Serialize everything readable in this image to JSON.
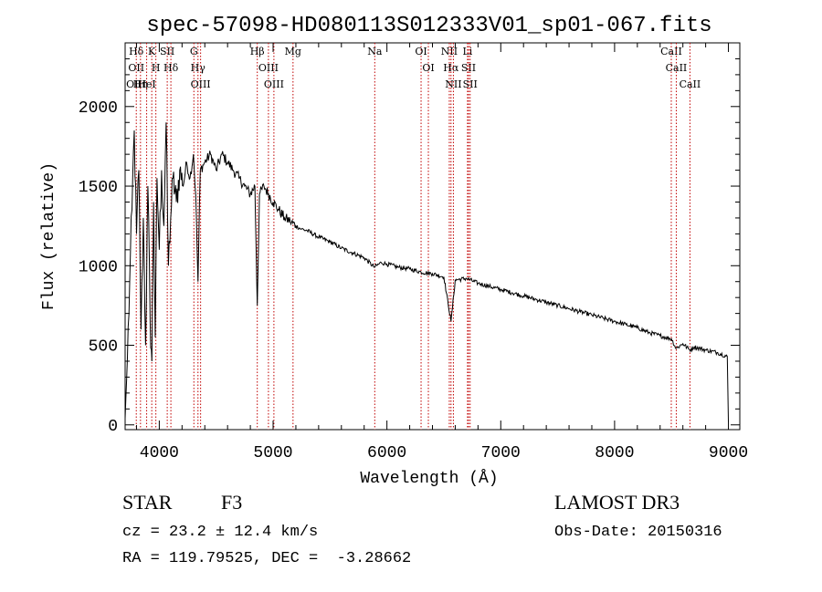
{
  "chart_data": {
    "type": "line",
    "title": "spec-57098-HD080113S012333V01_sp01-067.fits",
    "xlabel": "Wavelength (Å)",
    "ylabel": "Flux (relative)",
    "xlim": [
      3700,
      9100
    ],
    "ylim": [
      -30,
      2400
    ],
    "x_ticks": [
      4000,
      5000,
      6000,
      7000,
      8000,
      9000
    ],
    "y_ticks": [
      0,
      500,
      1000,
      1500,
      2000
    ],
    "grid": false,
    "series": [
      {
        "name": "flux",
        "points": [
          [
            3700,
            40
          ],
          [
            3720,
            420
          ],
          [
            3740,
            900
          ],
          [
            3760,
            1350
          ],
          [
            3780,
            1850
          ],
          [
            3800,
            1200
          ],
          [
            3820,
            1600
          ],
          [
            3840,
            600
          ],
          [
            3860,
            1300
          ],
          [
            3880,
            500
          ],
          [
            3900,
            1500
          ],
          [
            3920,
            650
          ],
          [
            3935,
            400
          ],
          [
            3950,
            1400
          ],
          [
            3965,
            550
          ],
          [
            3980,
            1550
          ],
          [
            4000,
            1100
          ],
          [
            4020,
            1600
          ],
          [
            4040,
            1250
          ],
          [
            4060,
            1900
          ],
          [
            4080,
            1000
          ],
          [
            4100,
            1300
          ],
          [
            4120,
            1550
          ],
          [
            4150,
            1400
          ],
          [
            4180,
            1600
          ],
          [
            4210,
            1500
          ],
          [
            4240,
            1650
          ],
          [
            4270,
            1550
          ],
          [
            4300,
            1700
          ],
          [
            4320,
            1450
          ],
          [
            4340,
            900
          ],
          [
            4360,
            1600
          ],
          [
            4400,
            1650
          ],
          [
            4450,
            1700
          ],
          [
            4500,
            1600
          ],
          [
            4550,
            1700
          ],
          [
            4600,
            1650
          ],
          [
            4650,
            1600
          ],
          [
            4700,
            1550
          ],
          [
            4750,
            1500
          ],
          [
            4800,
            1450
          ],
          [
            4840,
            1500
          ],
          [
            4861,
            750
          ],
          [
            4880,
            1450
          ],
          [
            4920,
            1500
          ],
          [
            4960,
            1450
          ],
          [
            5000,
            1400
          ],
          [
            5050,
            1350
          ],
          [
            5100,
            1300
          ],
          [
            5150,
            1280
          ],
          [
            5200,
            1250
          ],
          [
            5250,
            1230
          ],
          [
            5300,
            1220
          ],
          [
            5400,
            1180
          ],
          [
            5500,
            1150
          ],
          [
            5600,
            1110
          ],
          [
            5700,
            1080
          ],
          [
            5800,
            1050
          ],
          [
            5890,
            990
          ],
          [
            5950,
            1020
          ],
          [
            6000,
            1010
          ],
          [
            6100,
            990
          ],
          [
            6200,
            980
          ],
          [
            6300,
            960
          ],
          [
            6400,
            950
          ],
          [
            6500,
            930
          ],
          [
            6563,
            650
          ],
          [
            6600,
            910
          ],
          [
            6700,
            920
          ],
          [
            6800,
            890
          ],
          [
            6900,
            870
          ],
          [
            7000,
            850
          ],
          [
            7100,
            830
          ],
          [
            7200,
            810
          ],
          [
            7300,
            790
          ],
          [
            7400,
            770
          ],
          [
            7500,
            750
          ],
          [
            7600,
            730
          ],
          [
            7700,
            710
          ],
          [
            7800,
            690
          ],
          [
            7900,
            670
          ],
          [
            8000,
            650
          ],
          [
            8100,
            630
          ],
          [
            8200,
            610
          ],
          [
            8300,
            580
          ],
          [
            8400,
            560
          ],
          [
            8500,
            540
          ],
          [
            8540,
            480
          ],
          [
            8600,
            510
          ],
          [
            8660,
            470
          ],
          [
            8700,
            490
          ],
          [
            8800,
            470
          ],
          [
            8900,
            455
          ],
          [
            8990,
            430
          ],
          [
            9000,
            20
          ]
        ]
      }
    ],
    "line_markers": [
      {
        "wl": 3798,
        "labels": [
          "Hδ",
          "OII",
          "OIII"
        ]
      },
      {
        "wl": 3835,
        "labels": [
          "Hη"
        ]
      },
      {
        "wl": 3889,
        "labels": [
          "HeI"
        ]
      },
      {
        "wl": 3934,
        "labels": [
          "K"
        ]
      },
      {
        "wl": 3970,
        "labels": [
          "H"
        ]
      },
      {
        "wl": 4070,
        "labels": [
          "SII"
        ]
      },
      {
        "wl": 4102,
        "labels": [
          "Hδ"
        ]
      },
      {
        "wl": 4304,
        "labels": [
          "G"
        ]
      },
      {
        "wl": 4340,
        "labels": [
          "Hγ"
        ]
      },
      {
        "wl": 4363,
        "labels": [
          "OIII"
        ]
      },
      {
        "wl": 4861,
        "labels": [
          "Hβ"
        ]
      },
      {
        "wl": 4959,
        "labels": [
          "OIII"
        ]
      },
      {
        "wl": 5007,
        "labels": [
          "OIII"
        ]
      },
      {
        "wl": 5175,
        "labels": [
          "Mg"
        ]
      },
      {
        "wl": 5893,
        "labels": [
          "Na"
        ]
      },
      {
        "wl": 6300,
        "labels": [
          "OI"
        ]
      },
      {
        "wl": 6364,
        "labels": [
          "OI"
        ]
      },
      {
        "wl": 6548,
        "labels": [
          "NII"
        ]
      },
      {
        "wl": 6563,
        "labels": [
          "Hα"
        ]
      },
      {
        "wl": 6584,
        "labels": [
          "NII"
        ]
      },
      {
        "wl": 6708,
        "labels": [
          "Li"
        ]
      },
      {
        "wl": 6717,
        "labels": [
          "SII"
        ]
      },
      {
        "wl": 6731,
        "labels": [
          "SII"
        ]
      },
      {
        "wl": 8498,
        "labels": [
          "CaII"
        ]
      },
      {
        "wl": 8542,
        "labels": [
          "CaII"
        ]
      },
      {
        "wl": 8662,
        "labels": [
          "CaII"
        ]
      }
    ],
    "marker_color": "#c00000"
  },
  "info": {
    "object_class": "STAR",
    "subclass": "F3",
    "survey": "LAMOST DR3",
    "redshift_line": "cz = 23.2 ± 12.4 km/s",
    "obs_date_line": "Obs-Date: 20150316",
    "coords_line": "RA = 119.79525, DEC =  -3.28662"
  }
}
